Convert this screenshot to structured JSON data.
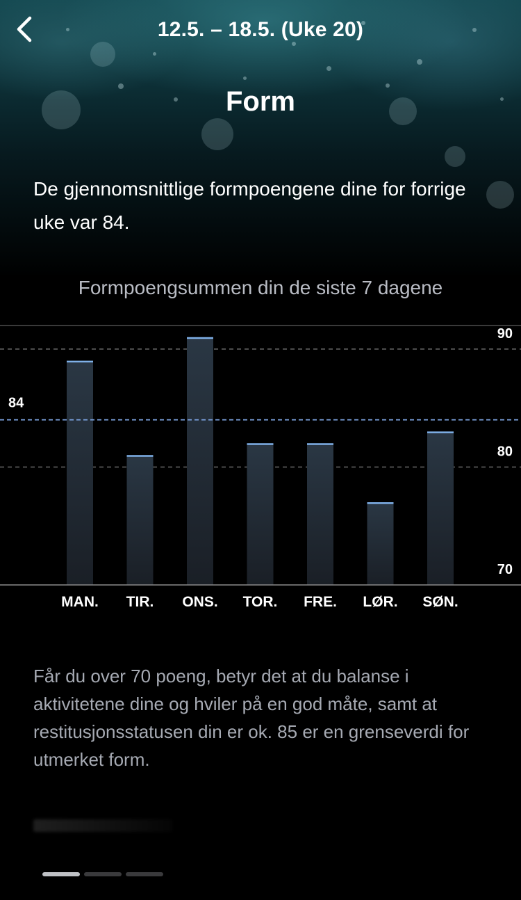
{
  "header": {
    "week_title": "12.5. – 18.5. (Uke 20)",
    "page_title": "Form"
  },
  "summary_text": "De gjennomsnittlige formpoengene dine for forrige uke var 84.",
  "chart_title": "Formpoengsummen din de siste 7 dagene",
  "chart_data": {
    "type": "bar",
    "categories": [
      "MAN.",
      "TIR.",
      "ONS.",
      "TOR.",
      "FRE.",
      "LØR.",
      "SØN."
    ],
    "values": [
      89,
      81,
      91,
      82,
      82,
      77,
      83
    ],
    "ylim": [
      70,
      92
    ],
    "y_ticks": [
      70,
      80,
      90
    ],
    "y_tick_labels": [
      "70",
      "80",
      "90"
    ],
    "average_value": 84,
    "average_label": "84",
    "reference_lines": [
      90,
      80
    ],
    "grid": false,
    "colors": {
      "bar_top": "#2a3744",
      "bar_bottom": "#1a1f26",
      "cap": "#7fb0e8",
      "avg_line": "#7fa7e6",
      "ref_line": "#6b6b6b"
    }
  },
  "description": "Får du over 70 poeng, betyr det at du balanse i aktivitetene dine og hviler på en god måte, samt at restitusjonsstatusen din er ok. 85 er en grenseverdi for utmerket form.",
  "pager": {
    "count": 3,
    "active_index": 0
  },
  "icons": {
    "back": "chevron-left-icon"
  }
}
